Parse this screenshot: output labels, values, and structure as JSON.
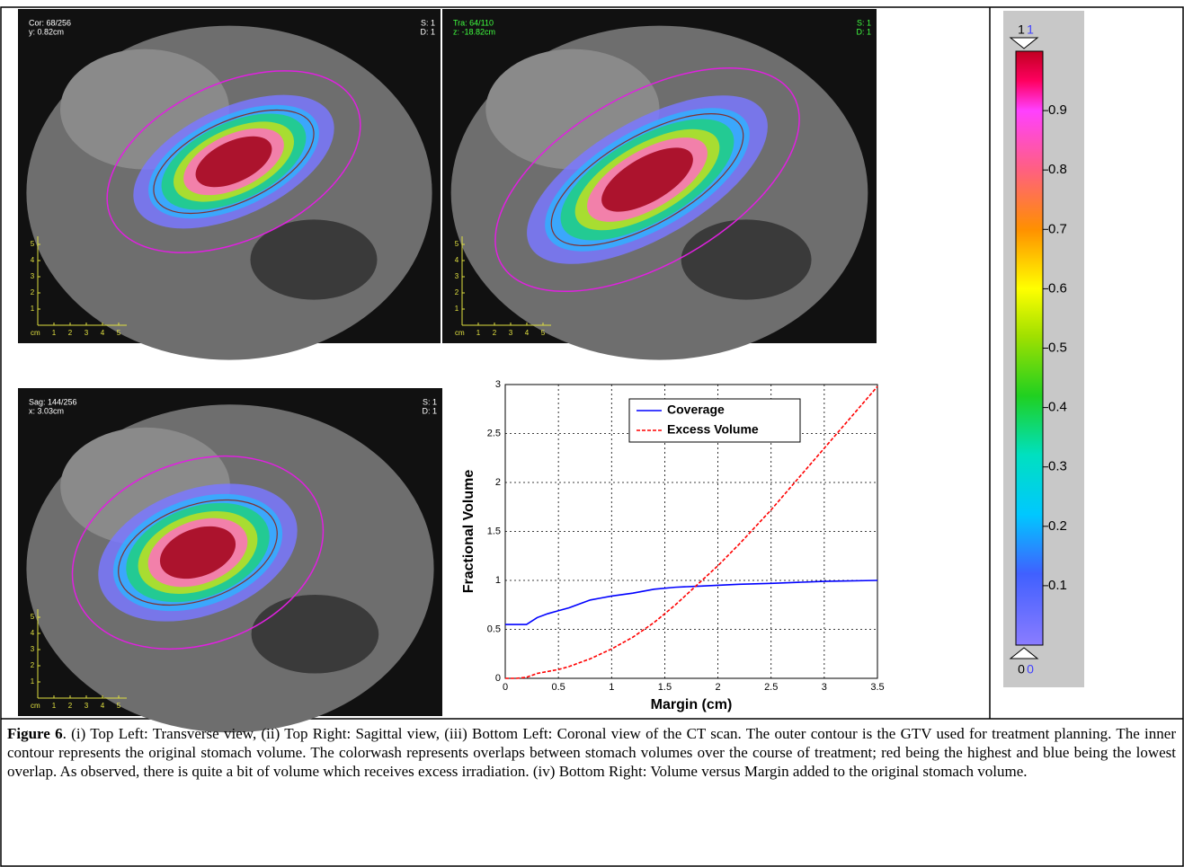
{
  "views": [
    {
      "line1": "Cor: 68/256",
      "line2": "y: 0.82cm",
      "s": "S: 1",
      "d": "D: 1"
    },
    {
      "line1": "Tra: 64/110",
      "line2": "z: -18.82cm",
      "s": "S: 1",
      "d": "D: 1"
    },
    {
      "line1": "Sag: 144/256",
      "line2": "x: 3.03cm",
      "s": "S: 1",
      "d": "D: 1"
    }
  ],
  "ruler": {
    "unit": "cm",
    "labels": [
      "1",
      "2",
      "3",
      "4",
      "5"
    ]
  },
  "colorbar": {
    "top_label": "1",
    "top_label_blue": "1",
    "bottom_label": "0",
    "bottom_label_blue": "0",
    "lim": [
      0,
      1
    ],
    "ticks": [
      0.1,
      0.2,
      0.3,
      0.4,
      0.5,
      0.6,
      0.7,
      0.8,
      0.9
    ]
  },
  "chart_data": {
    "type": "line",
    "xlabel": "Margin (cm)",
    "ylabel": "Fractional Volume",
    "x": [
      0,
      0.1,
      0.2,
      0.3,
      0.4,
      0.5,
      0.6,
      0.7,
      0.8,
      0.9,
      1.0,
      1.2,
      1.4,
      1.6,
      1.8,
      2.0,
      2.2,
      2.5,
      3.0,
      3.5
    ],
    "series": [
      {
        "name": "Coverage",
        "color": "#0000ff",
        "dashed": false,
        "values": [
          0.55,
          0.55,
          0.55,
          0.62,
          0.66,
          0.69,
          0.72,
          0.76,
          0.8,
          0.82,
          0.84,
          0.87,
          0.91,
          0.93,
          0.94,
          0.95,
          0.96,
          0.97,
          0.99,
          1.0
        ]
      },
      {
        "name": "Excess Volume",
        "color": "#ff0000",
        "dashed": true,
        "values": [
          0,
          0,
          0.01,
          0.05,
          0.07,
          0.09,
          0.12,
          0.16,
          0.2,
          0.25,
          0.3,
          0.42,
          0.57,
          0.75,
          0.95,
          1.15,
          1.37,
          1.72,
          2.35,
          2.98
        ]
      }
    ],
    "xlim": [
      0,
      3.5
    ],
    "xticks": [
      0,
      0.5,
      1,
      1.5,
      2,
      2.5,
      3,
      3.5
    ],
    "ylim": [
      0,
      3
    ],
    "yticks": [
      0,
      0.5,
      1,
      1.5,
      2,
      2.5,
      3
    ],
    "grid": true,
    "legend": "top"
  },
  "caption": {
    "label": "Figure 6",
    "text": ". (i) Top Left: Transverse view, (ii) Top Right: Sagittal view, (iii) Bottom Left: Coronal view of the CT scan. The outer contour is the GTV used for treatment planning. The inner contour represents the original stomach volume. The colorwash represents overlaps between stomach volumes over the course of treatment; red being the highest and blue being the lowest overlap. As observed, there is quite a bit of volume which receives excess irradiation. (iv) Bottom Right: Volume versus Margin added to the original stomach volume."
  }
}
